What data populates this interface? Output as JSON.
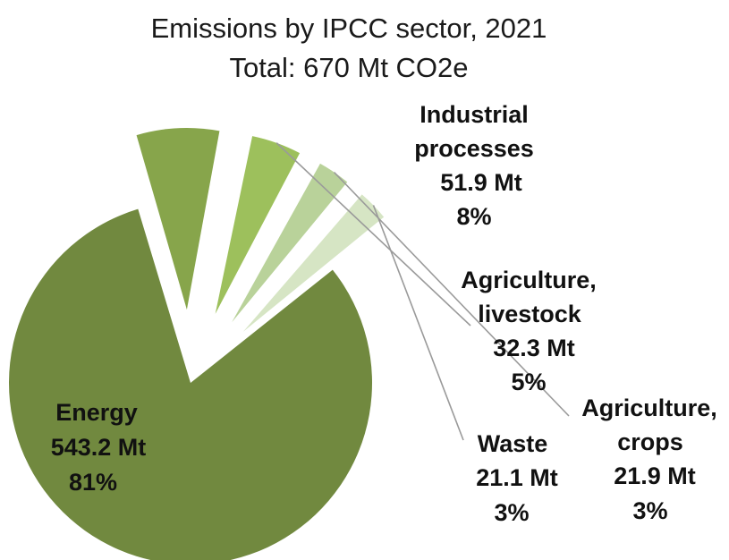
{
  "chart_data": {
    "type": "pie",
    "title": "Emissions by IPCC sector, 2021",
    "subtitle": "Total: 670 Mt CO2e",
    "unit": "Mt",
    "slices": [
      {
        "name": "Energy",
        "value": 543.2,
        "value_label": "543.2 Mt",
        "percent_label": "81%",
        "color": "#71893F",
        "exploded": false
      },
      {
        "name": "Industrial processes",
        "name_lines": [
          "Industrial",
          "processes"
        ],
        "value": 51.9,
        "value_label": "51.9 Mt",
        "percent_label": "8%",
        "color": "#87A54B",
        "exploded": true
      },
      {
        "name": "Agriculture, livestock",
        "name_lines": [
          "Agriculture,",
          "livestock"
        ],
        "value": 32.3,
        "value_label": "32.3 Mt",
        "percent_label": "5%",
        "color": "#9DC05C",
        "exploded": true
      },
      {
        "name": "Agriculture, crops",
        "name_lines": [
          "Agriculture,",
          "crops"
        ],
        "value": 21.9,
        "value_label": "21.9 Mt",
        "percent_label": "3%",
        "color": "#B9D29A",
        "exploded": true
      },
      {
        "name": "Waste",
        "value": 21.1,
        "value_label": "21.1 Mt",
        "percent_label": "3%",
        "color": "#D6E5C4",
        "exploded": true
      }
    ]
  }
}
